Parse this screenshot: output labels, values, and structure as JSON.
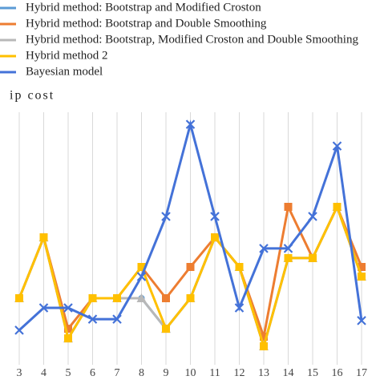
{
  "chart_data": {
    "type": "line",
    "title": "ip cost",
    "categories": [
      "3",
      "4",
      "5",
      "6",
      "7",
      "8",
      "9",
      "10",
      "11",
      "12",
      "13",
      "14",
      "15",
      "16",
      "17"
    ],
    "ylim": [
      0,
      100
    ],
    "grid": true,
    "series": [
      {
        "name": "Hybrid method: Bootstrap and Modified Croston",
        "color": "#5b9bd5",
        "marker": "circle",
        "values": [
          26,
          51.3,
          9.3,
          26,
          26,
          26,
          13.3,
          26,
          51.3,
          39,
          6,
          42.7,
          42.7,
          64,
          35
        ]
      },
      {
        "name": "Hybrid method: Bootstrap and Double Smoothing",
        "color": "#ed7d31",
        "marker": "square",
        "values": [
          26,
          51.3,
          13.3,
          26,
          26,
          39,
          26,
          39,
          51.3,
          39,
          10,
          64,
          42.7,
          64,
          39
        ]
      },
      {
        "name": "Hybrid method: Bootstrap, Modified Croston and Double Smoothing",
        "color": "#b8b8b8",
        "marker": "triangle",
        "values": [
          26,
          51.3,
          9.3,
          26,
          26,
          26,
          13.3,
          26,
          51.3,
          39,
          6,
          42.7,
          42.7,
          64,
          35
        ]
      },
      {
        "name": "Hybrid method 2",
        "color": "#ffc000",
        "marker": "square",
        "values": [
          26,
          51.3,
          9.3,
          26,
          26,
          39,
          13.3,
          26,
          51.3,
          39,
          6,
          42.7,
          42.7,
          64,
          35
        ]
      },
      {
        "name": "Bayesian model",
        "color": "#4472d8",
        "marker": "x",
        "values": [
          12.7,
          22,
          22,
          17.3,
          17.3,
          35,
          60,
          98.3,
          60,
          22,
          46.7,
          46.7,
          60,
          89.3,
          16.7
        ]
      }
    ]
  }
}
